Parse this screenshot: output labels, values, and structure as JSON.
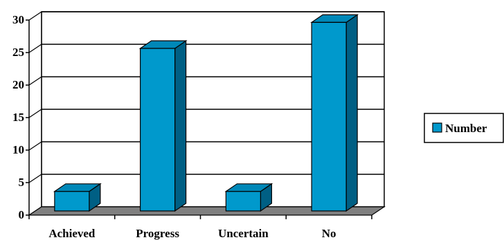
{
  "chart_data": {
    "type": "bar",
    "categories": [
      "Achieved",
      "Progress",
      "Uncertain",
      "No"
    ],
    "series": [
      {
        "name": "Number",
        "values": [
          3,
          25,
          3,
          29
        ]
      }
    ],
    "ylim": [
      0,
      30
    ],
    "yticks": [
      0,
      5,
      10,
      15,
      20,
      25,
      30
    ],
    "grid": true,
    "three_d": true,
    "legend_position": "right",
    "colors": {
      "bar_front": "#0099cc",
      "bar_top": "#0088b8",
      "bar_side": "#005f84",
      "floor": "#808080",
      "grid": "#000000",
      "outline": "#000000"
    }
  }
}
